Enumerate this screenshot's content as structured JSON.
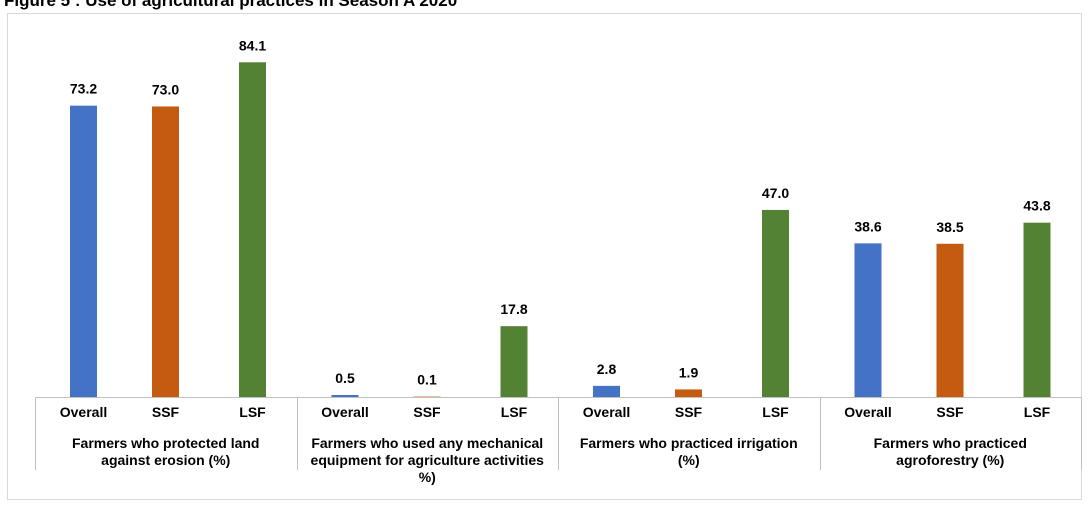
{
  "title": "Figure 5 : Use of agricultural practices in Season A 2020",
  "chart_data": {
    "type": "bar",
    "groups": [
      {
        "label_lines": [
          "Farmers who protected land",
          "against erosion  (%)"
        ],
        "categories": [
          "Overall",
          "SSF",
          "LSF"
        ],
        "values": [
          73.2,
          73.0,
          84.1
        ],
        "value_labels": [
          "73.2",
          "73.0",
          "84.1"
        ]
      },
      {
        "label_lines": [
          "Farmers who used any mechanical",
          "equipment for agriculture activities",
          "%)"
        ],
        "categories": [
          "Overall",
          "SSF",
          "LSF"
        ],
        "values": [
          0.5,
          0.1,
          17.8
        ],
        "value_labels": [
          "0.5",
          "0.1",
          "17.8"
        ]
      },
      {
        "label_lines": [
          "Farmers who practiced irrigation",
          "(%)"
        ],
        "categories": [
          "Overall",
          "SSF",
          "LSF"
        ],
        "values": [
          2.8,
          1.9,
          47.0
        ],
        "value_labels": [
          "2.8",
          "1.9",
          "47.0"
        ]
      },
      {
        "label_lines": [
          "Farmers who practiced",
          "agroforestry (%)"
        ],
        "categories": [
          "Overall",
          "SSF",
          "LSF"
        ],
        "values": [
          38.6,
          38.5,
          43.8
        ],
        "value_labels": [
          "38.6",
          "38.5",
          "43.8"
        ]
      }
    ],
    "colors": [
      "#4472C4",
      "#C55A11",
      "#548235"
    ],
    "ylim": [
      0,
      90
    ],
    "grid": false,
    "legend": "none"
  }
}
